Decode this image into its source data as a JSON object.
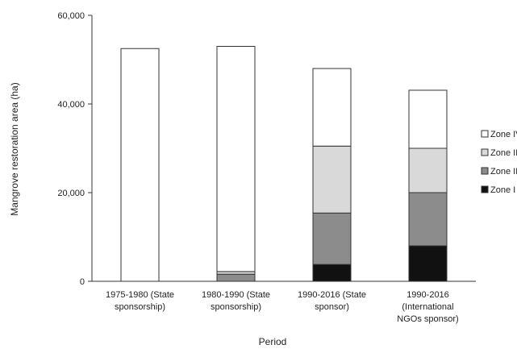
{
  "chart_data": {
    "type": "bar",
    "stacked": true,
    "xlabel": "Period",
    "ylabel": "Mangrove restoration area (ha)",
    "ylim": [
      0,
      60000
    ],
    "yticks": [
      {
        "value": 0,
        "label": "0"
      },
      {
        "value": 20000,
        "label": "20,000"
      },
      {
        "value": 40000,
        "label": "40,000"
      },
      {
        "value": 60000,
        "label": "60,000"
      }
    ],
    "categories": [
      [
        "1975-1980 (State",
        "sponsorship)"
      ],
      [
        "1980-1990 (State",
        "sponsorship)"
      ],
      [
        "1990-2016 (State",
        "sponsor)"
      ],
      [
        "1990-2016",
        "(International",
        "NGOs sponsor)"
      ]
    ],
    "series": [
      {
        "name": "Zone I",
        "color": "#111111",
        "values": [
          0,
          0,
          3800,
          8000
        ]
      },
      {
        "name": "Zone II",
        "color": "#8c8c8c",
        "values": [
          0,
          1600,
          11600,
          12000
        ]
      },
      {
        "name": "Zone III",
        "color": "#d9d9d9",
        "values": [
          0,
          600,
          15100,
          10000
        ]
      },
      {
        "name": "Zone IV",
        "color": "#ffffff",
        "values": [
          52500,
          50800,
          17500,
          13100
        ]
      }
    ],
    "legend_position": "right",
    "legend_order": [
      "Zone IV",
      "Zone III",
      "Zone II",
      "Zone I"
    ],
    "grid": false
  }
}
